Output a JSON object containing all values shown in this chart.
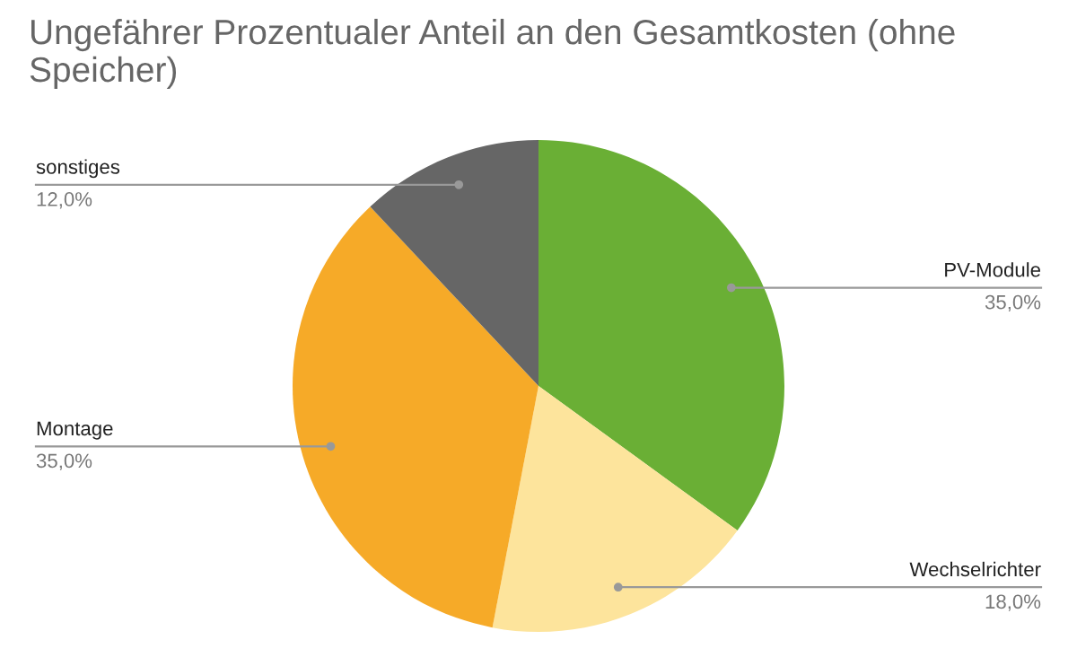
{
  "chart_data": {
    "type": "pie",
    "title": "Ungefährer Prozentualer Anteil an den Gesamtkosten (ohne Speicher)",
    "categories": [
      "PV-Module",
      "Wechselrichter",
      "Montage",
      "sonstiges"
    ],
    "values": [
      35,
      18,
      35,
      12
    ],
    "colors": [
      "#6aaf35",
      "#fde49c",
      "#f6aa28",
      "#666666"
    ],
    "value_labels": [
      "35,0%",
      "18,0%",
      "35,0%",
      "12,0%"
    ],
    "legend": false
  }
}
